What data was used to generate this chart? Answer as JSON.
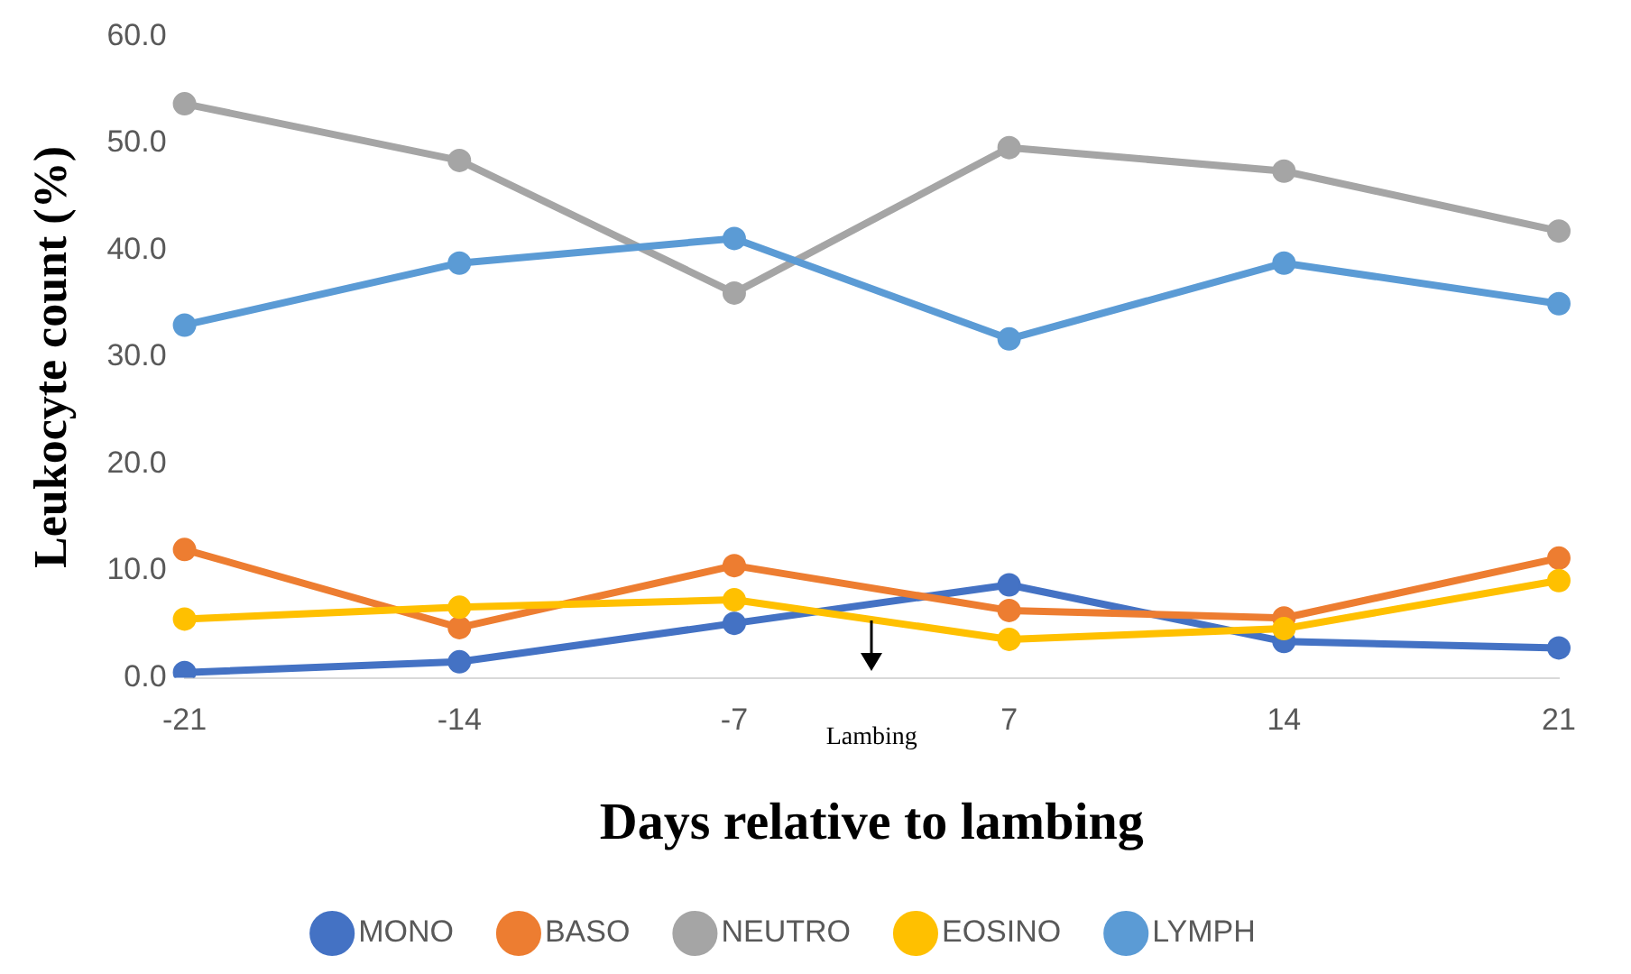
{
  "chart_data": {
    "type": "line",
    "xlabel": "Days relative to lambing",
    "ylabel": "Leukocyte count (%)",
    "categories": [
      "-21",
      "-14",
      "-7",
      "7",
      "14",
      "21"
    ],
    "series": [
      {
        "name": "MONO",
        "color": "#4472c4",
        "values": [
          0.5,
          1.5,
          5.1,
          8.7,
          3.4,
          2.8
        ]
      },
      {
        "name": "BASO",
        "color": "#ed7d31",
        "values": [
          12.0,
          4.7,
          10.5,
          6.3,
          5.6,
          11.2
        ]
      },
      {
        "name": "NEUTRO",
        "color": "#a5a5a5",
        "values": [
          53.7,
          48.4,
          36.0,
          49.6,
          47.4,
          41.8
        ]
      },
      {
        "name": "EOSINO",
        "color": "#ffc000",
        "values": [
          5.5,
          6.6,
          7.3,
          3.6,
          4.6,
          9.1
        ]
      },
      {
        "name": "LYMPH",
        "color": "#5b9bd5",
        "values": [
          33.0,
          38.8,
          41.1,
          31.7,
          38.8,
          35.0
        ]
      }
    ],
    "ylim": [
      0,
      60
    ],
    "yticks": [
      {
        "value": 0,
        "label": "0.0"
      },
      {
        "value": 10,
        "label": "10.0"
      },
      {
        "value": 20,
        "label": "20.0"
      },
      {
        "value": 30,
        "label": "30.0"
      },
      {
        "value": 40,
        "label": "40.0"
      },
      {
        "value": 50,
        "label": "50.0"
      },
      {
        "value": 60,
        "label": "60.0"
      }
    ],
    "annotations": [
      "Lambing"
    ],
    "grid": false,
    "legend": "bottom",
    "marker": "circle",
    "line_style": "solid"
  }
}
